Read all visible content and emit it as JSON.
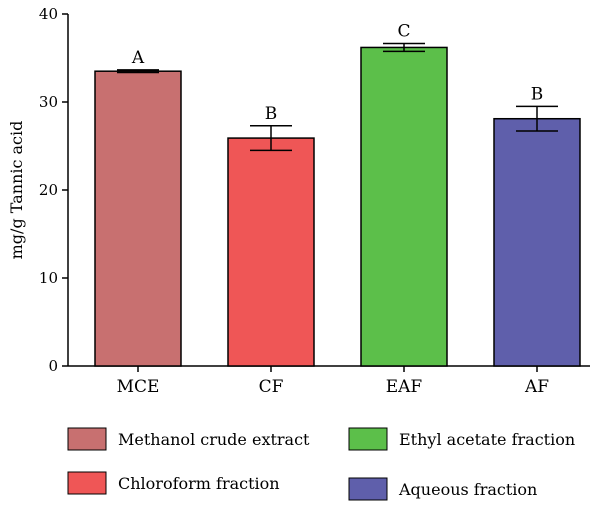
{
  "chart_data": {
    "type": "bar",
    "categories": [
      "MCE",
      "CF",
      "EAF",
      "AF"
    ],
    "values": [
      33.5,
      25.9,
      36.2,
      28.1
    ],
    "errors": [
      0.15,
      1.4,
      0.45,
      1.4
    ],
    "significance": [
      "A",
      "B",
      "C",
      "B"
    ],
    "colors": [
      "#c87070",
      "#ef5656",
      "#5cbf4a",
      "#5f5fab"
    ],
    "ylabel": "mg/g Tannic acid",
    "xlabel": "",
    "ylim": [
      0,
      40
    ],
    "yticks": [
      0,
      10,
      20,
      30,
      40
    ],
    "grid": false,
    "legend": {
      "position": "bottom",
      "entries": [
        {
          "label": "Methanol crude extract",
          "color": "#c87070"
        },
        {
          "label": "Chloroform fraction",
          "color": "#ef5656"
        },
        {
          "label": "Ethyl acetate fraction",
          "color": "#5cbf4a"
        },
        {
          "label": "Aqueous fraction",
          "color": "#5f5fab"
        }
      ]
    }
  }
}
